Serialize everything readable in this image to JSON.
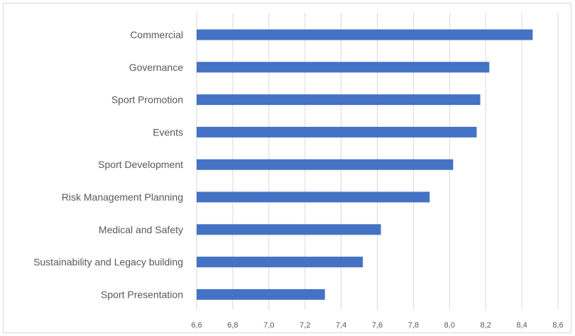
{
  "chart_data": {
    "type": "bar",
    "orientation": "horizontal",
    "categories": [
      "Commercial",
      "Governance",
      "Sport Promotion",
      "Events",
      "Sport Development",
      "Risk Management Planning",
      "Medical and Safety",
      "Sustainability and Legacy building",
      "Sport Presentation"
    ],
    "values": [
      8.46,
      8.22,
      8.17,
      8.15,
      8.02,
      7.89,
      7.62,
      7.52,
      7.31
    ],
    "xlim": [
      6.6,
      8.6
    ],
    "x_ticks": [
      "6,6",
      "6,8",
      "7,0",
      "7,2",
      "7,4",
      "7,6",
      "7,8",
      "8,0",
      "8,2",
      "8,4",
      "8,6"
    ],
    "grid": "vertical",
    "bar_color": "#4472c4",
    "gridline_color": "#d9d9d9",
    "legend": "none"
  }
}
